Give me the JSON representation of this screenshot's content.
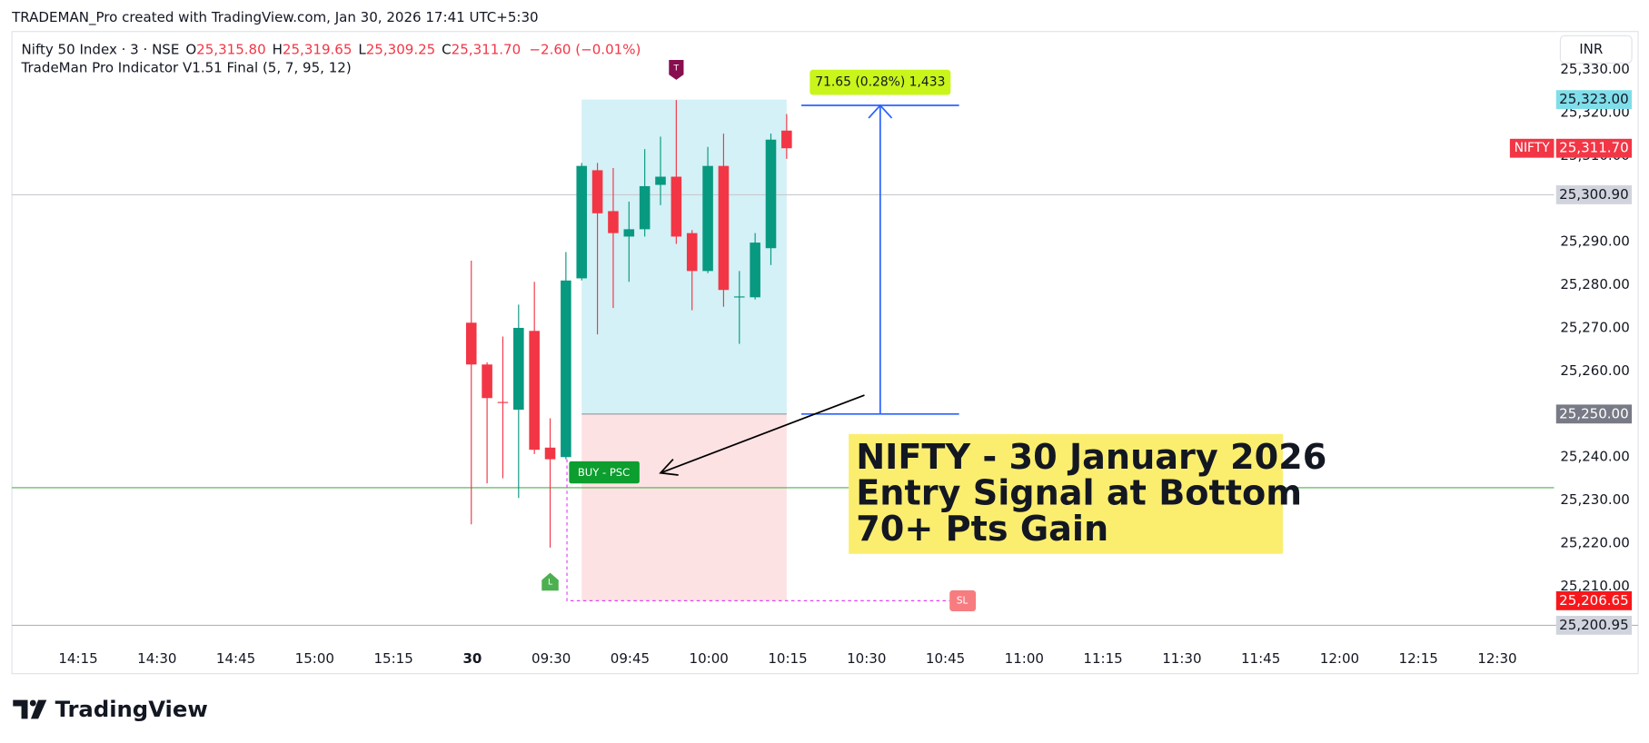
{
  "header": {
    "attribution": "TRADEMAN_Pro created with TradingView.com, Jan 30, 2026 17:41 UTC+5:30",
    "symbol": "Nifty 50 Index · 3 · NSE",
    "ohlc": [
      {
        "key": "O",
        "value": "25,315.80"
      },
      {
        "key": "H",
        "value": "25,319.65"
      },
      {
        "key": "L",
        "value": "25,309.25"
      },
      {
        "key": "C",
        "value": "25,311.70"
      }
    ],
    "change": "−2.60 (−0.01%)",
    "indicator": "TradeMan Pro Indicator V1.51 Final (5, 7, 95, 12)",
    "currency": "INR"
  },
  "chart_data": {
    "type": "candlestick",
    "candles": [
      [
        25271.2,
        25285.6,
        25224.4,
        25261.5
      ],
      [
        25261.5,
        25262.0,
        25233.9,
        25253.7
      ],
      [
        25252.8,
        25268.0,
        25235.1,
        25252.6
      ],
      [
        25251.0,
        25275.4,
        25230.5,
        25270.0
      ],
      [
        25269.3,
        25280.7,
        25240.7,
        25241.7
      ],
      [
        25242.2,
        25249.0,
        25219.0,
        25239.5
      ],
      [
        25240.0,
        25287.6,
        25239.5,
        25281.0
      ],
      [
        25281.5,
        25308.3,
        25281.0,
        25307.6
      ],
      [
        25306.6,
        25308.3,
        25268.5,
        25296.6
      ],
      [
        25297.1,
        25307.1,
        25274.6,
        25292.0
      ],
      [
        25291.2,
        25299.3,
        25280.7,
        25292.9
      ],
      [
        25292.9,
        25311.5,
        25291.2,
        25302.9
      ],
      [
        25303.2,
        25314.4,
        25298.5,
        25305.1
      ],
      [
        25305.1,
        25322.9,
        25289.5,
        25291.2
      ],
      [
        25292.0,
        25292.7,
        25274.1,
        25283.2
      ],
      [
        25283.2,
        25312.0,
        25282.7,
        25307.6
      ],
      [
        25307.6,
        25315.1,
        25274.9,
        25278.8
      ],
      [
        25277.1,
        25283.2,
        25266.3,
        25277.3
      ],
      [
        25277.1,
        25292.0,
        25276.6,
        25289.8
      ],
      [
        25288.5,
        25315.1,
        25284.6,
        25313.7
      ],
      [
        25315.8,
        25319.65,
        25309.25,
        25311.7
      ]
    ],
    "up_color": "#089981",
    "down_color": "#f23645",
    "ylim": [
      25200.95,
      25338.8
    ],
    "yticks": [
      {
        "value": 25330,
        "label": "25,330.00"
      },
      {
        "value": 25320,
        "label": "25,320.00"
      },
      {
        "value": 25310,
        "label": "25,310.00"
      },
      {
        "value": 25290,
        "label": "25,290.00"
      },
      {
        "value": 25280,
        "label": "25,280.00"
      },
      {
        "value": 25270,
        "label": "25,270.00"
      },
      {
        "value": 25260,
        "label": "25,260.00"
      },
      {
        "value": 25240,
        "label": "25,240.00"
      },
      {
        "value": 25230,
        "label": "25,230.00"
      },
      {
        "value": 25220,
        "label": "25,220.00"
      },
      {
        "value": 25210,
        "label": "25,210.00"
      }
    ],
    "xticks": [
      "14:15",
      "14:30",
      "14:45",
      "15:00",
      "15:15",
      "30",
      "09:30",
      "09:45",
      "10:00",
      "10:15",
      "10:30",
      "10:45",
      "11:00",
      "11:15",
      "11:30",
      "11:45",
      "12:00",
      "12:15",
      "12:30"
    ],
    "lines": [
      {
        "value": 25300.9,
        "color": "#c8cad0"
      },
      {
        "value": 25232.9,
        "color": "#4caf50"
      }
    ],
    "price_labels": [
      {
        "value": 25323,
        "label": "25,323.00",
        "color": "#80deea",
        "text_color": "#131722"
      },
      {
        "value": 25311.7,
        "label": "25,311.70",
        "color": "#f23645",
        "text_color": "#ffffff",
        "tag": "NIFTY"
      },
      {
        "value": 25300.9,
        "label": "25,300.90",
        "color": "#d1d4dc",
        "text_color": "#131722"
      },
      {
        "value": 25250,
        "label": "25,250.00",
        "color": "#787b86",
        "text_color": "#ffffff"
      },
      {
        "value": 25206.65,
        "label": "25,206.65",
        "color": "#f7171b",
        "text_color": "#ffffff"
      },
      {
        "value": 25200.95,
        "label": "25,200.95",
        "color": "#d1d4dc",
        "text_color": "#131722"
      }
    ],
    "position": {
      "target": 25323,
      "entry": 25250,
      "stop": 25206.65
    },
    "measure": {
      "from": 25250,
      "to": 25321.65,
      "label": "71.65 (0.28%) 1,433"
    },
    "signals": {
      "buy": "BUY - PSC",
      "top": "T",
      "low": "L",
      "stop": "SL"
    },
    "annotation": [
      "NIFTY - 30 January 2026",
      "Entry Signal at Bottom",
      "70+ Pts Gain"
    ]
  },
  "footer": {
    "brand": "TradingView"
  }
}
